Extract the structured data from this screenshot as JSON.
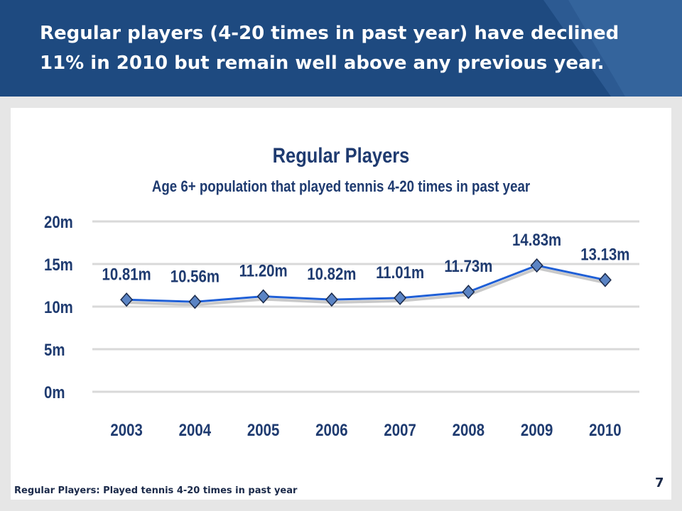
{
  "slide": {
    "title": "Regular players (4-20 times in past year) have declined 11% in 2010 but remain well above any previous year.",
    "footnote": "Regular Players:  Played tennis 4-20 times in past year",
    "page_number": "7"
  },
  "colors": {
    "header": "#1e4a80",
    "line": "#1f5fd6",
    "marker": "#5b84c4",
    "label": "#1f3b70",
    "grid": "#d9d9d9"
  },
  "chart_data": {
    "type": "line",
    "title": "Regular Players",
    "subtitle": "Age 6+ population that played tennis 4-20 times in past year",
    "categories": [
      "2003",
      "2004",
      "2005",
      "2006",
      "2007",
      "2008",
      "2009",
      "2010"
    ],
    "series": [
      {
        "values": [
          10.81,
          10.56,
          11.2,
          10.82,
          11.01,
          11.73,
          14.83,
          13.13
        ],
        "labels": [
          "10.81m",
          "10.56m",
          "11.20m",
          "10.82m",
          "11.01m",
          "11.73m",
          "14.83m",
          "13.13m"
        ]
      }
    ],
    "ylim": [
      0,
      20
    ],
    "yticks": [
      0,
      5,
      10,
      15,
      20
    ],
    "ytick_labels": [
      "0m",
      "5m",
      "10m",
      "15m",
      "20m"
    ],
    "grid": true,
    "legend": "none",
    "marker": "diamond"
  }
}
